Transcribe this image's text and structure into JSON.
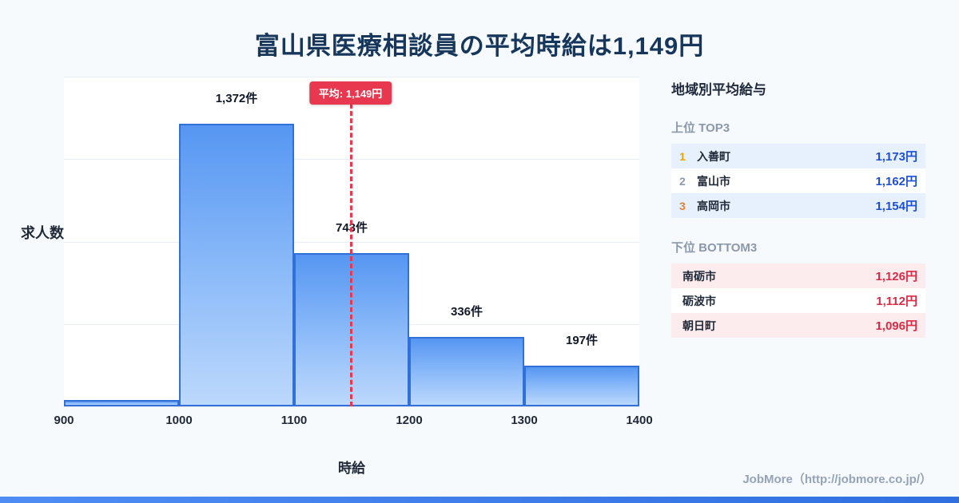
{
  "title": "富山県医療相談員の平均時給は1,149円",
  "chart_data": {
    "type": "bar",
    "title": "富山県医療相談員の平均時給は1,149円",
    "xlabel": "時給",
    "ylabel": "求人数",
    "bin_edges": [
      900,
      1000,
      1100,
      1200,
      1300,
      1400
    ],
    "categories": [
      "900-1000",
      "1000-1100",
      "1100-1200",
      "1200-1300",
      "1300-1400"
    ],
    "values": [
      30,
      1372,
      743,
      336,
      197
    ],
    "bar_labels": [
      "",
      "1,372件",
      "743件",
      "336件",
      "197件"
    ],
    "average_line": {
      "value": 1149,
      "label": "平均: 1,149円"
    },
    "xlim": [
      900,
      1400
    ],
    "ylim": [
      0,
      1600
    ],
    "grid": "horizontal",
    "legend": "none"
  },
  "sidebar": {
    "title": "地域別平均給与",
    "top_section": {
      "heading": "上位 TOP3",
      "rows": [
        {
          "rank": "1",
          "name": "入善町",
          "value": "1,173円"
        },
        {
          "rank": "2",
          "name": "富山市",
          "value": "1,162円"
        },
        {
          "rank": "3",
          "name": "高岡市",
          "value": "1,154円"
        }
      ]
    },
    "bottom_section": {
      "heading": "下位 BOTTOM3",
      "rows": [
        {
          "name": "南砺市",
          "value": "1,126円"
        },
        {
          "name": "砺波市",
          "value": "1,112円"
        },
        {
          "name": "朝日町",
          "value": "1,096円"
        }
      ]
    }
  },
  "footer": {
    "credit": "JobMore（http://jobmore.co.jp/）"
  },
  "colors": {
    "title_navy": "#16365c",
    "bar_border": "#3170d8",
    "bar_gradient_top": "#5696f2",
    "bar_gradient_bottom": "#bcd8fc",
    "average_red": "#e8384f",
    "top_value_blue": "#1d4ed8",
    "bottom_value_red": "#d92b45",
    "rank1_gold": "#f0a500",
    "rank2_gray": "#8d99ab",
    "rank3_bronze": "#e0832f",
    "footer_strip_blue": "#3b82f6"
  }
}
